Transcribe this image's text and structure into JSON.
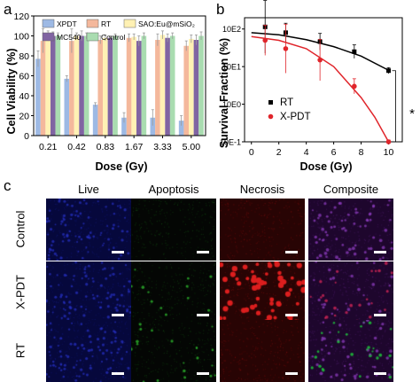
{
  "panels": {
    "a": "a",
    "b": "b",
    "c": "c"
  },
  "chart_data": [
    {
      "type": "bar",
      "title": "",
      "xlabel": "Dose (Gy)",
      "ylabel": "Cell Viability (%)",
      "ylim": [
        0,
        120
      ],
      "yticks": [
        0,
        20,
        40,
        60,
        80,
        100,
        120
      ],
      "categories": [
        "0.21",
        "0.42",
        "0.83",
        "1.67",
        "3.33",
        "5.00"
      ],
      "legend_position": "top",
      "series": [
        {
          "name": "XPDT",
          "color": "#9db9e4",
          "values": [
            77,
            57,
            31,
            18,
            18,
            15
          ],
          "errors": [
            8,
            3,
            2,
            5,
            8,
            5
          ]
        },
        {
          "name": "RT",
          "color": "#f4b89c",
          "values": [
            95,
            95,
            96,
            98,
            96,
            90
          ],
          "errors": [
            12,
            12,
            4,
            4,
            6,
            5
          ]
        },
        {
          "name": "SAO:Eu@mSiO₂",
          "color": "#fff1b4",
          "values": [
            100,
            100,
            98,
            99,
            101,
            97
          ],
          "errors": [
            5,
            3,
            3,
            3,
            4,
            4
          ]
        },
        {
          "name": "MC540",
          "color": "#8064a2",
          "values": [
            100,
            100,
            98,
            95,
            98,
            96
          ],
          "errors": [
            4,
            5,
            2,
            5,
            4,
            5
          ]
        },
        {
          "name": "Control",
          "color": "#a9dcb0",
          "values": [
            100,
            100,
            100,
            100,
            100,
            100
          ],
          "errors": [
            3,
            3,
            2,
            3,
            3,
            4
          ]
        }
      ]
    },
    {
      "type": "scatter",
      "title": "",
      "xlabel": "Dose (Gy)",
      "ylabel": "Survival Fraction (%)",
      "xlim": [
        -0.5,
        11
      ],
      "xticks": [
        0,
        2,
        4,
        6,
        8,
        10
      ],
      "ylim_log10": [
        -1,
        2.3
      ],
      "ytick_labels": [
        "10E-1",
        "10E0",
        "10E1",
        "10E2"
      ],
      "scale": "log",
      "legend_position": "center-left",
      "annotation": "*",
      "series": [
        {
          "name": "RT",
          "color": "#000000",
          "points": [
            [
              1,
              114
            ],
            [
              2.5,
              80
            ],
            [
              5,
              46
            ],
            [
              7.5,
              25
            ],
            [
              10,
              7.8
            ]
          ],
          "err_log10": [
            0.7,
            0.25,
            0.22,
            0.18,
            0.08
          ],
          "fit": [
            [
              0,
              80
            ],
            [
              2,
              70
            ],
            [
              4,
              52
            ],
            [
              6,
              34
            ],
            [
              8,
              19
            ],
            [
              10,
              8
            ]
          ]
        },
        {
          "name": "X-PDT",
          "color": "#e0252b",
          "points": [
            [
              1,
              50
            ],
            [
              2.5,
              30
            ],
            [
              5,
              15
            ],
            [
              7.5,
              3
            ],
            [
              10,
              0.1
            ]
          ],
          "err_log10": [
            0.4,
            0.65,
            0.55,
            0.2,
            0.05
          ],
          "fit": [
            [
              0,
              63
            ],
            [
              2,
              50
            ],
            [
              4,
              30
            ],
            [
              6,
              10
            ],
            [
              8,
              1.5
            ],
            [
              9,
              0.45
            ],
            [
              10,
              0.1
            ]
          ]
        }
      ]
    }
  ],
  "micrographs": {
    "columns": [
      "Live",
      "Apoptosis",
      "Necrosis",
      "Composite"
    ],
    "rows": [
      "Control",
      "X-PDT",
      "RT"
    ]
  }
}
